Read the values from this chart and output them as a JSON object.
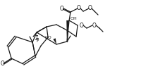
{
  "background_color": "#ffffff",
  "line_color": "#1a1a1a",
  "line_width": 0.9,
  "figsize": [
    2.0,
    1.08
  ],
  "dpi": 100,
  "xlim": [
    0,
    200
  ],
  "ylim": [
    0,
    108
  ]
}
